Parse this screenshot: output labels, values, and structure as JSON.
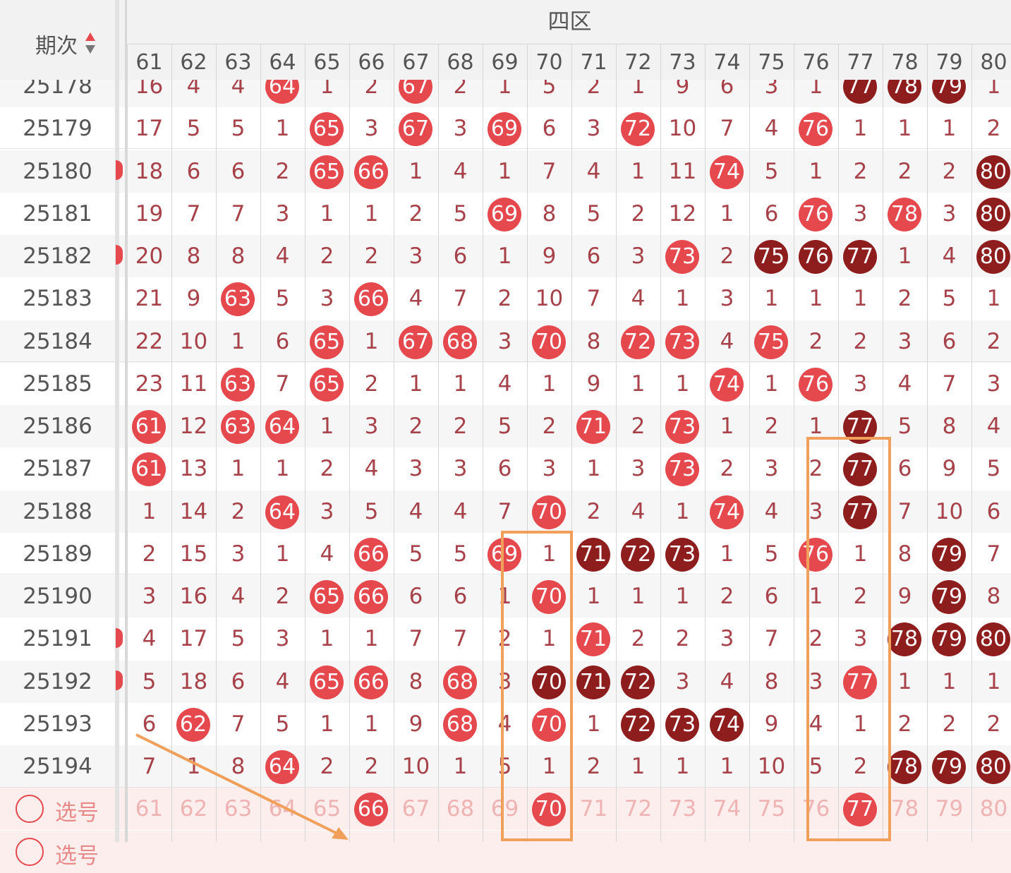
{
  "header": {
    "issue_label": "期次",
    "zone_title": "四区",
    "columns": [
      "61",
      "62",
      "63",
      "64",
      "65",
      "66",
      "67",
      "68",
      "69",
      "70",
      "71",
      "72",
      "73",
      "74",
      "75",
      "76",
      "77",
      "78",
      "79",
      "80"
    ]
  },
  "rows": [
    {
      "issue": "25178",
      "cells": [
        {
          "v": "16"
        },
        {
          "v": "4"
        },
        {
          "v": "4"
        },
        {
          "v": "64",
          "ball": "red"
        },
        {
          "v": "1"
        },
        {
          "v": "2"
        },
        {
          "v": "67",
          "ball": "red"
        },
        {
          "v": "2"
        },
        {
          "v": "1"
        },
        {
          "v": "5"
        },
        {
          "v": "2"
        },
        {
          "v": "1"
        },
        {
          "v": "9"
        },
        {
          "v": "6"
        },
        {
          "v": "3"
        },
        {
          "v": "1"
        },
        {
          "v": "77",
          "ball": "dark"
        },
        {
          "v": "78",
          "ball": "dark"
        },
        {
          "v": "79",
          "ball": "dark"
        },
        {
          "v": "1"
        }
      ]
    },
    {
      "issue": "25179",
      "cells": [
        {
          "v": "17"
        },
        {
          "v": "5"
        },
        {
          "v": "5"
        },
        {
          "v": "1"
        },
        {
          "v": "65",
          "ball": "red"
        },
        {
          "v": "3"
        },
        {
          "v": "67",
          "ball": "red"
        },
        {
          "v": "3"
        },
        {
          "v": "69",
          "ball": "red"
        },
        {
          "v": "6"
        },
        {
          "v": "3"
        },
        {
          "v": "72",
          "ball": "red"
        },
        {
          "v": "10"
        },
        {
          "v": "7"
        },
        {
          "v": "4"
        },
        {
          "v": "76",
          "ball": "red"
        },
        {
          "v": "1"
        },
        {
          "v": "1"
        },
        {
          "v": "1"
        },
        {
          "v": "2"
        }
      ]
    },
    {
      "issue": "25180",
      "cells": [
        {
          "v": "18"
        },
        {
          "v": "6"
        },
        {
          "v": "6"
        },
        {
          "v": "2"
        },
        {
          "v": "65",
          "ball": "red"
        },
        {
          "v": "66",
          "ball": "red"
        },
        {
          "v": "1"
        },
        {
          "v": "4"
        },
        {
          "v": "1"
        },
        {
          "v": "7"
        },
        {
          "v": "4"
        },
        {
          "v": "1"
        },
        {
          "v": "11"
        },
        {
          "v": "74",
          "ball": "red"
        },
        {
          "v": "5"
        },
        {
          "v": "1"
        },
        {
          "v": "2"
        },
        {
          "v": "2"
        },
        {
          "v": "2"
        },
        {
          "v": "80",
          "ball": "dark"
        }
      ]
    },
    {
      "issue": "25181",
      "cells": [
        {
          "v": "19"
        },
        {
          "v": "7"
        },
        {
          "v": "7"
        },
        {
          "v": "3"
        },
        {
          "v": "1"
        },
        {
          "v": "1"
        },
        {
          "v": "2"
        },
        {
          "v": "5"
        },
        {
          "v": "69",
          "ball": "red"
        },
        {
          "v": "8"
        },
        {
          "v": "5"
        },
        {
          "v": "2"
        },
        {
          "v": "12"
        },
        {
          "v": "1"
        },
        {
          "v": "6"
        },
        {
          "v": "76",
          "ball": "red"
        },
        {
          "v": "3"
        },
        {
          "v": "78",
          "ball": "red"
        },
        {
          "v": "3"
        },
        {
          "v": "80",
          "ball": "dark"
        }
      ]
    },
    {
      "issue": "25182",
      "cells": [
        {
          "v": "20"
        },
        {
          "v": "8"
        },
        {
          "v": "8"
        },
        {
          "v": "4"
        },
        {
          "v": "2"
        },
        {
          "v": "2"
        },
        {
          "v": "3"
        },
        {
          "v": "6"
        },
        {
          "v": "1"
        },
        {
          "v": "9"
        },
        {
          "v": "6"
        },
        {
          "v": "3"
        },
        {
          "v": "73",
          "ball": "red"
        },
        {
          "v": "2"
        },
        {
          "v": "75",
          "ball": "dark"
        },
        {
          "v": "76",
          "ball": "dark"
        },
        {
          "v": "77",
          "ball": "dark"
        },
        {
          "v": "1"
        },
        {
          "v": "4"
        },
        {
          "v": "80",
          "ball": "dark"
        }
      ]
    },
    {
      "issue": "25183",
      "cells": [
        {
          "v": "21"
        },
        {
          "v": "9"
        },
        {
          "v": "63",
          "ball": "red"
        },
        {
          "v": "5"
        },
        {
          "v": "3"
        },
        {
          "v": "66",
          "ball": "red"
        },
        {
          "v": "4"
        },
        {
          "v": "7"
        },
        {
          "v": "2"
        },
        {
          "v": "10"
        },
        {
          "v": "7"
        },
        {
          "v": "4"
        },
        {
          "v": "1"
        },
        {
          "v": "3"
        },
        {
          "v": "1"
        },
        {
          "v": "1"
        },
        {
          "v": "1"
        },
        {
          "v": "2"
        },
        {
          "v": "5"
        },
        {
          "v": "1"
        }
      ]
    },
    {
      "issue": "25184",
      "cells": [
        {
          "v": "22"
        },
        {
          "v": "10"
        },
        {
          "v": "1"
        },
        {
          "v": "6"
        },
        {
          "v": "65",
          "ball": "red"
        },
        {
          "v": "1"
        },
        {
          "v": "67",
          "ball": "red"
        },
        {
          "v": "68",
          "ball": "red"
        },
        {
          "v": "3"
        },
        {
          "v": "70",
          "ball": "red"
        },
        {
          "v": "8"
        },
        {
          "v": "72",
          "ball": "red"
        },
        {
          "v": "73",
          "ball": "red"
        },
        {
          "v": "4"
        },
        {
          "v": "75",
          "ball": "red"
        },
        {
          "v": "2"
        },
        {
          "v": "2"
        },
        {
          "v": "3"
        },
        {
          "v": "6"
        },
        {
          "v": "2"
        }
      ]
    },
    {
      "issue": "25185",
      "cells": [
        {
          "v": "23"
        },
        {
          "v": "11"
        },
        {
          "v": "63",
          "ball": "red"
        },
        {
          "v": "7"
        },
        {
          "v": "65",
          "ball": "red"
        },
        {
          "v": "2"
        },
        {
          "v": "1"
        },
        {
          "v": "1"
        },
        {
          "v": "4"
        },
        {
          "v": "1"
        },
        {
          "v": "9"
        },
        {
          "v": "1"
        },
        {
          "v": "1"
        },
        {
          "v": "74",
          "ball": "red"
        },
        {
          "v": "1"
        },
        {
          "v": "76",
          "ball": "red"
        },
        {
          "v": "3"
        },
        {
          "v": "4"
        },
        {
          "v": "7"
        },
        {
          "v": "3"
        }
      ]
    },
    {
      "issue": "25186",
      "cells": [
        {
          "v": "61",
          "ball": "red"
        },
        {
          "v": "12"
        },
        {
          "v": "63",
          "ball": "red"
        },
        {
          "v": "64",
          "ball": "red"
        },
        {
          "v": "1"
        },
        {
          "v": "3"
        },
        {
          "v": "2"
        },
        {
          "v": "2"
        },
        {
          "v": "5"
        },
        {
          "v": "2"
        },
        {
          "v": "71",
          "ball": "red"
        },
        {
          "v": "2"
        },
        {
          "v": "73",
          "ball": "red"
        },
        {
          "v": "1"
        },
        {
          "v": "2"
        },
        {
          "v": "1"
        },
        {
          "v": "77",
          "ball": "dark"
        },
        {
          "v": "5"
        },
        {
          "v": "8"
        },
        {
          "v": "4"
        }
      ]
    },
    {
      "issue": "25187",
      "cells": [
        {
          "v": "61",
          "ball": "red"
        },
        {
          "v": "13"
        },
        {
          "v": "1"
        },
        {
          "v": "1"
        },
        {
          "v": "2"
        },
        {
          "v": "4"
        },
        {
          "v": "3"
        },
        {
          "v": "3"
        },
        {
          "v": "6"
        },
        {
          "v": "3"
        },
        {
          "v": "1"
        },
        {
          "v": "3"
        },
        {
          "v": "73",
          "ball": "red"
        },
        {
          "v": "2"
        },
        {
          "v": "3"
        },
        {
          "v": "2"
        },
        {
          "v": "77",
          "ball": "dark"
        },
        {
          "v": "6"
        },
        {
          "v": "9"
        },
        {
          "v": "5"
        }
      ]
    },
    {
      "issue": "25188",
      "cells": [
        {
          "v": "1"
        },
        {
          "v": "14"
        },
        {
          "v": "2"
        },
        {
          "v": "64",
          "ball": "red"
        },
        {
          "v": "3"
        },
        {
          "v": "5"
        },
        {
          "v": "4"
        },
        {
          "v": "4"
        },
        {
          "v": "7"
        },
        {
          "v": "70",
          "ball": "red"
        },
        {
          "v": "2"
        },
        {
          "v": "4"
        },
        {
          "v": "1"
        },
        {
          "v": "74",
          "ball": "red"
        },
        {
          "v": "4"
        },
        {
          "v": "3"
        },
        {
          "v": "77",
          "ball": "dark"
        },
        {
          "v": "7"
        },
        {
          "v": "10"
        },
        {
          "v": "6"
        }
      ]
    },
    {
      "issue": "25189",
      "cells": [
        {
          "v": "2"
        },
        {
          "v": "15"
        },
        {
          "v": "3"
        },
        {
          "v": "1"
        },
        {
          "v": "4"
        },
        {
          "v": "66",
          "ball": "red"
        },
        {
          "v": "5"
        },
        {
          "v": "5"
        },
        {
          "v": "69",
          "ball": "red"
        },
        {
          "v": "1"
        },
        {
          "v": "71",
          "ball": "dark"
        },
        {
          "v": "72",
          "ball": "dark"
        },
        {
          "v": "73",
          "ball": "dark"
        },
        {
          "v": "1"
        },
        {
          "v": "5"
        },
        {
          "v": "76",
          "ball": "red"
        },
        {
          "v": "1"
        },
        {
          "v": "8"
        },
        {
          "v": "79",
          "ball": "dark"
        },
        {
          "v": "7"
        }
      ]
    },
    {
      "issue": "25190",
      "cells": [
        {
          "v": "3"
        },
        {
          "v": "16"
        },
        {
          "v": "4"
        },
        {
          "v": "2"
        },
        {
          "v": "65",
          "ball": "red"
        },
        {
          "v": "66",
          "ball": "red"
        },
        {
          "v": "6"
        },
        {
          "v": "6"
        },
        {
          "v": "1"
        },
        {
          "v": "70",
          "ball": "red"
        },
        {
          "v": "1"
        },
        {
          "v": "1"
        },
        {
          "v": "1"
        },
        {
          "v": "2"
        },
        {
          "v": "6"
        },
        {
          "v": "1"
        },
        {
          "v": "2"
        },
        {
          "v": "9"
        },
        {
          "v": "79",
          "ball": "dark"
        },
        {
          "v": "8"
        }
      ]
    },
    {
      "issue": "25191",
      "cells": [
        {
          "v": "4"
        },
        {
          "v": "17"
        },
        {
          "v": "5"
        },
        {
          "v": "3"
        },
        {
          "v": "1"
        },
        {
          "v": "1"
        },
        {
          "v": "7"
        },
        {
          "v": "7"
        },
        {
          "v": "2"
        },
        {
          "v": "1"
        },
        {
          "v": "71",
          "ball": "red"
        },
        {
          "v": "2"
        },
        {
          "v": "2"
        },
        {
          "v": "3"
        },
        {
          "v": "7"
        },
        {
          "v": "2"
        },
        {
          "v": "3"
        },
        {
          "v": "78",
          "ball": "dark"
        },
        {
          "v": "79",
          "ball": "dark"
        },
        {
          "v": "80",
          "ball": "dark"
        }
      ]
    },
    {
      "issue": "25192",
      "cells": [
        {
          "v": "5"
        },
        {
          "v": "18"
        },
        {
          "v": "6"
        },
        {
          "v": "4"
        },
        {
          "v": "65",
          "ball": "red"
        },
        {
          "v": "66",
          "ball": "red"
        },
        {
          "v": "8"
        },
        {
          "v": "68",
          "ball": "red"
        },
        {
          "v": "3"
        },
        {
          "v": "70",
          "ball": "dark"
        },
        {
          "v": "71",
          "ball": "dark"
        },
        {
          "v": "72",
          "ball": "dark"
        },
        {
          "v": "3"
        },
        {
          "v": "4"
        },
        {
          "v": "8"
        },
        {
          "v": "3"
        },
        {
          "v": "77",
          "ball": "red"
        },
        {
          "v": "1"
        },
        {
          "v": "1"
        },
        {
          "v": "1"
        }
      ]
    },
    {
      "issue": "25193",
      "cells": [
        {
          "v": "6"
        },
        {
          "v": "62",
          "ball": "red"
        },
        {
          "v": "7"
        },
        {
          "v": "5"
        },
        {
          "v": "1"
        },
        {
          "v": "1"
        },
        {
          "v": "9"
        },
        {
          "v": "68",
          "ball": "red"
        },
        {
          "v": "4"
        },
        {
          "v": "70",
          "ball": "red"
        },
        {
          "v": "1"
        },
        {
          "v": "72",
          "ball": "dark"
        },
        {
          "v": "73",
          "ball": "dark"
        },
        {
          "v": "74",
          "ball": "dark"
        },
        {
          "v": "9"
        },
        {
          "v": "4"
        },
        {
          "v": "1"
        },
        {
          "v": "2"
        },
        {
          "v": "2"
        },
        {
          "v": "2"
        }
      ]
    },
    {
      "issue": "25194",
      "cells": [
        {
          "v": "7"
        },
        {
          "v": "1"
        },
        {
          "v": "8"
        },
        {
          "v": "64",
          "ball": "red"
        },
        {
          "v": "2"
        },
        {
          "v": "2"
        },
        {
          "v": "10"
        },
        {
          "v": "1"
        },
        {
          "v": "5"
        },
        {
          "v": "1"
        },
        {
          "v": "2"
        },
        {
          "v": "1"
        },
        {
          "v": "1"
        },
        {
          "v": "1"
        },
        {
          "v": "10"
        },
        {
          "v": "5"
        },
        {
          "v": "2"
        },
        {
          "v": "78",
          "ball": "dark"
        },
        {
          "v": "79",
          "ball": "dark"
        },
        {
          "v": "80",
          "ball": "dark"
        }
      ]
    }
  ],
  "pick_row": {
    "label": "选号",
    "second_label": "选号",
    "cells": [
      {
        "v": "61"
      },
      {
        "v": "62"
      },
      {
        "v": "63"
      },
      {
        "v": "64"
      },
      {
        "v": "65"
      },
      {
        "v": "66",
        "ball": "red"
      },
      {
        "v": "67"
      },
      {
        "v": "68"
      },
      {
        "v": "69"
      },
      {
        "v": "70",
        "ball": "red"
      },
      {
        "v": "71"
      },
      {
        "v": "72"
      },
      {
        "v": "73"
      },
      {
        "v": "74"
      },
      {
        "v": "75"
      },
      {
        "v": "76"
      },
      {
        "v": "77",
        "ball": "red"
      },
      {
        "v": "78"
      },
      {
        "v": "79"
      },
      {
        "v": "80"
      }
    ]
  },
  "colors": {
    "ball_red": "#e5484d",
    "ball_dark": "#8e1d1d",
    "number_text": "#a8424a",
    "annotation": "#f0a05a"
  }
}
